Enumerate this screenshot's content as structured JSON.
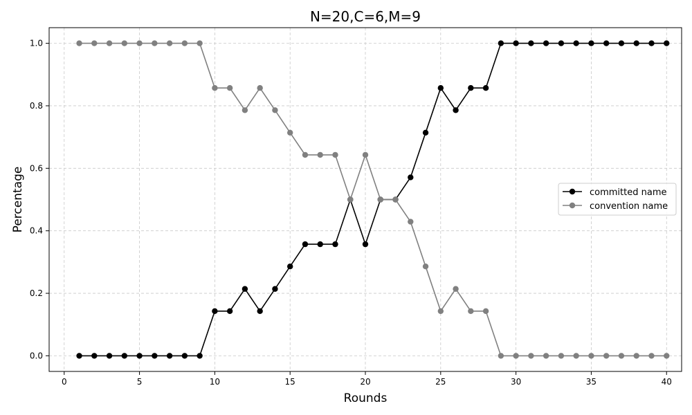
{
  "chart_data": {
    "type": "line",
    "title": "N=20,C=6,M=9",
    "xlabel": "Rounds",
    "ylabel": "Percentage",
    "xlim": [
      -1,
      41
    ],
    "ylim": [
      -0.05,
      1.05
    ],
    "xticks": [
      0,
      5,
      10,
      15,
      20,
      25,
      30,
      35,
      40
    ],
    "yticks": [
      0.0,
      0.2,
      0.4,
      0.6,
      0.8,
      1.0
    ],
    "ytick_labels": [
      "0.0",
      "0.2",
      "0.4",
      "0.6",
      "0.8",
      "1.0"
    ],
    "grid": true,
    "legend_position": "center-right",
    "x": [
      1,
      2,
      3,
      4,
      5,
      6,
      7,
      8,
      9,
      10,
      11,
      12,
      13,
      14,
      15,
      16,
      17,
      18,
      19,
      20,
      21,
      22,
      23,
      24,
      25,
      26,
      27,
      28,
      29,
      30,
      31,
      32,
      33,
      34,
      35,
      36,
      37,
      38,
      39,
      40
    ],
    "series": [
      {
        "name": "committed name",
        "color": "#000000",
        "values": [
          0,
          0,
          0,
          0,
          0,
          0,
          0,
          0,
          0,
          0.143,
          0.143,
          0.214,
          0.143,
          0.214,
          0.286,
          0.357,
          0.357,
          0.357,
          0.5,
          0.357,
          0.5,
          0.5,
          0.571,
          0.714,
          0.857,
          0.786,
          0.857,
          0.857,
          1,
          1,
          1,
          1,
          1,
          1,
          1,
          1,
          1,
          1,
          1,
          1
        ]
      },
      {
        "name": "convention name",
        "color": "#808080",
        "values": [
          1,
          1,
          1,
          1,
          1,
          1,
          1,
          1,
          1,
          0.857,
          0.857,
          0.786,
          0.857,
          0.786,
          0.714,
          0.643,
          0.643,
          0.643,
          0.5,
          0.643,
          0.5,
          0.5,
          0.429,
          0.286,
          0.143,
          0.214,
          0.143,
          0.143,
          0,
          0,
          0,
          0,
          0,
          0,
          0,
          0,
          0,
          0,
          0,
          0
        ]
      }
    ]
  }
}
